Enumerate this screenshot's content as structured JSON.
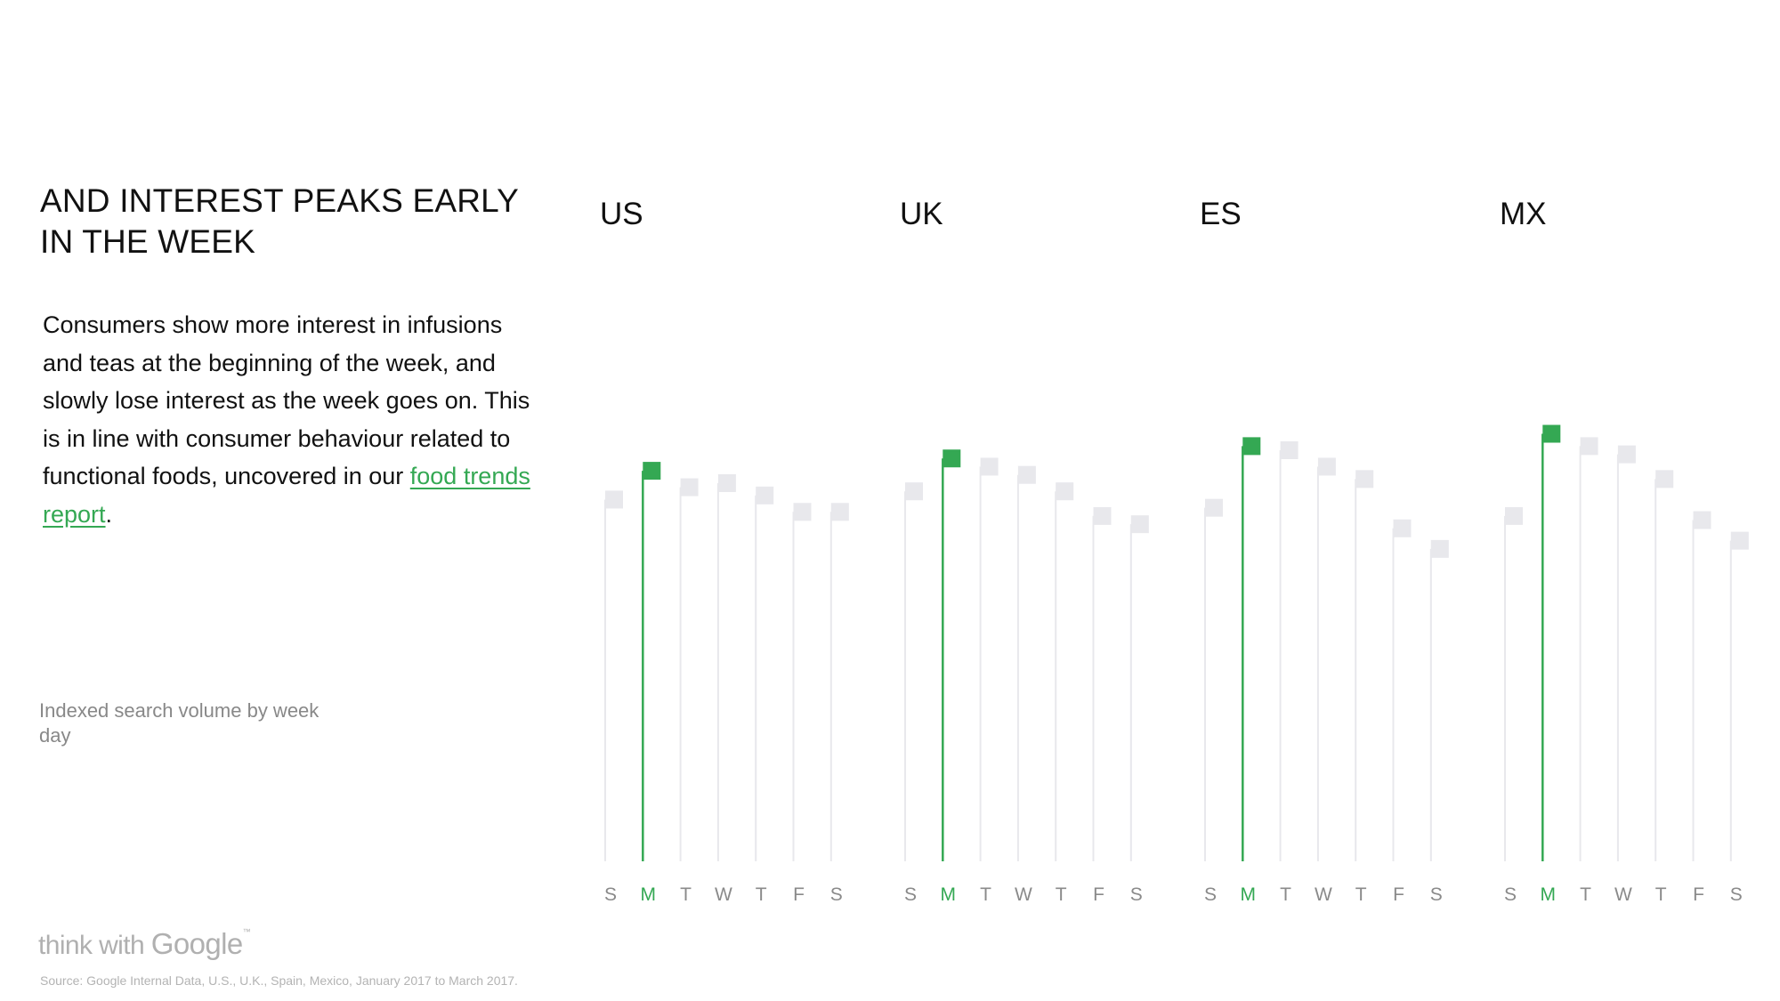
{
  "title": "AND INTEREST PEAKS EARLY IN THE WEEK",
  "body": {
    "text": "Consumers show more interest in infusions and teas at the beginning of the week, and slowly lose interest as the week goes on. This is in line with consumer behaviour related to functional foods, uncovered in our ",
    "link_text": "food trends report",
    "end": "."
  },
  "note": "Indexed search volume by week day",
  "logo": {
    "text": "think with ",
    "brand": "Google",
    "mark": "™"
  },
  "source": "Source: Google Internal Data, U.S., U.K., Spain, Mexico, January 2017 to March 2017.",
  "colors": {
    "highlight": "#34a853",
    "muted": "#e8e8ec",
    "axis_label": "#8a8a8a"
  },
  "chart_data": [
    {
      "type": "lollipop",
      "title": "US",
      "categories": [
        "S",
        "M",
        "T",
        "W",
        "T",
        "F",
        "S"
      ],
      "values": [
        88,
        95,
        91,
        92,
        89,
        85,
        85
      ],
      "highlight_index": 1,
      "ylim": [
        0,
        100
      ]
    },
    {
      "type": "lollipop",
      "title": "UK",
      "categories": [
        "S",
        "M",
        "T",
        "W",
        "T",
        "F",
        "S"
      ],
      "values": [
        90,
        98,
        96,
        94,
        90,
        84,
        82
      ],
      "highlight_index": 1,
      "ylim": [
        0,
        100
      ]
    },
    {
      "type": "lollipop",
      "title": "ES",
      "categories": [
        "S",
        "M",
        "T",
        "W",
        "T",
        "F",
        "S"
      ],
      "values": [
        86,
        101,
        100,
        96,
        93,
        81,
        76
      ],
      "highlight_index": 1,
      "ylim": [
        0,
        100
      ]
    },
    {
      "type": "lollipop",
      "title": "MX",
      "categories": [
        "S",
        "M",
        "T",
        "W",
        "T",
        "F",
        "S"
      ],
      "values": [
        84,
        104,
        101,
        99,
        93,
        83,
        78
      ],
      "highlight_index": 1,
      "ylim": [
        0,
        100
      ]
    }
  ]
}
